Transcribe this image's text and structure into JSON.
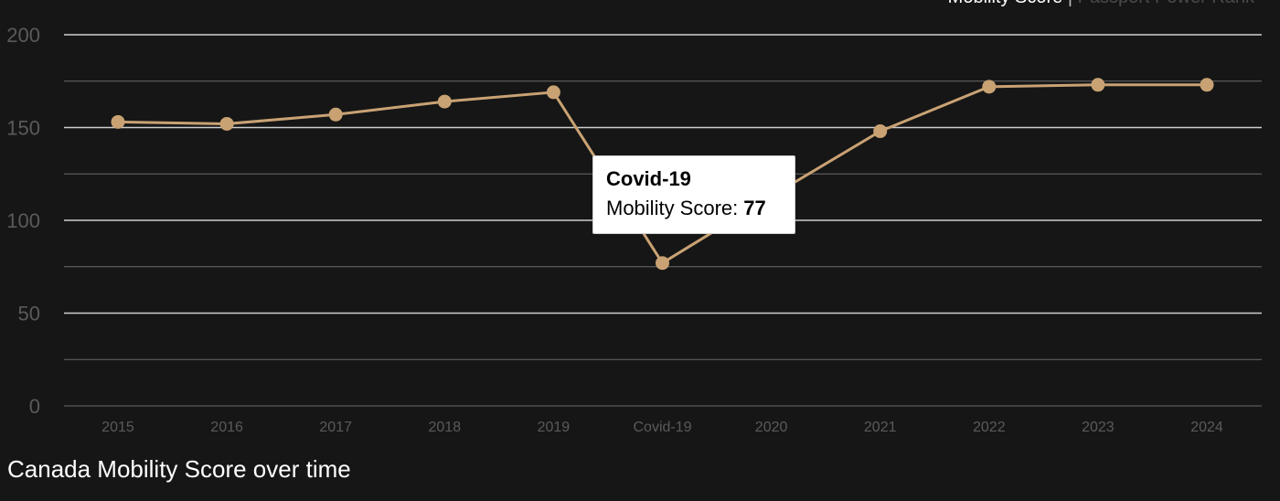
{
  "toggle": {
    "active": "Mobility Score",
    "separator": " | ",
    "inactive": "Passport Power Rank"
  },
  "caption": "Canada Mobility Score over time",
  "tooltip": {
    "title": "Covid-19",
    "label": "Mobility Score:",
    "value": "77"
  },
  "colors": {
    "background": "#161616",
    "line": "#c9a274",
    "grid_major": "#cfcfcf",
    "grid_minor": "#6a6a6a",
    "tick": "#5a5a5a"
  },
  "chart_data": {
    "type": "line",
    "categories": [
      "2015",
      "2016",
      "2017",
      "2018",
      "2019",
      "Covid-19",
      "2020",
      "2021",
      "2022",
      "2023",
      "2024"
    ],
    "series": [
      {
        "values": [
          153,
          152,
          157,
          164,
          169,
          77,
          113,
          148,
          172,
          173,
          173
        ]
      }
    ],
    "yticks": [
      0,
      50,
      100,
      150,
      200
    ],
    "ylim": [
      0,
      200
    ],
    "grid": true
  }
}
